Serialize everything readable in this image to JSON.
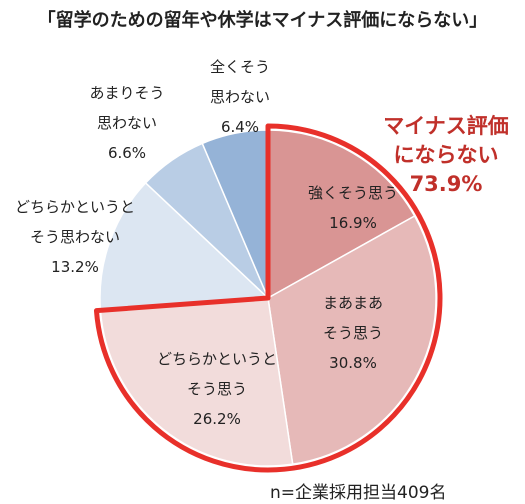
{
  "chart_data": {
    "type": "pie",
    "title": "「留学のための留年や休学はマイナス評価にならない」",
    "slices": [
      {
        "label_lines": [
          "強くそう思う"
        ],
        "value": 16.9,
        "value_text": "16.9%",
        "color": "#d99594"
      },
      {
        "label_lines": [
          "まあまあ",
          "そう思う"
        ],
        "value": 30.8,
        "value_text": "30.8%",
        "color": "#e6b9b8"
      },
      {
        "label_lines": [
          "どちらかというと",
          "そう思う"
        ],
        "value": 26.2,
        "value_text": "26.2%",
        "color": "#f2dcdb"
      },
      {
        "label_lines": [
          "どちらかというと",
          "そう思わない"
        ],
        "value": 13.2,
        "value_text": "13.2%",
        "color": "#dce6f2"
      },
      {
        "label_lines": [
          "あまりそう",
          "思わない"
        ],
        "value": 6.6,
        "value_text": "6.6%",
        "color": "#b9cde5"
      },
      {
        "label_lines": [
          "全くそう",
          "思わない"
        ],
        "value": 6.4,
        "value_text": "6.4%",
        "color": "#95b3d7"
      }
    ],
    "highlight": {
      "label_lines": [
        "マイナス評価",
        "にならない"
      ],
      "value_text": "73.9%",
      "color": "#e8302a"
    },
    "note": "n=企業採用担当409名"
  }
}
